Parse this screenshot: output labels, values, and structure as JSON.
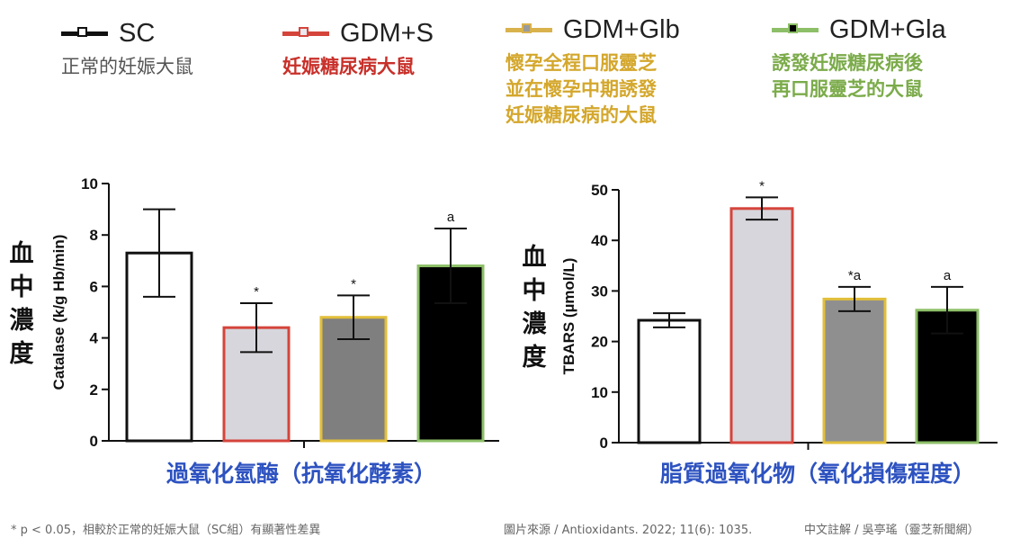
{
  "legend": [
    {
      "name": "SC",
      "desc": "正常的妊娠大鼠",
      "desc_color": "#555555",
      "line": "#111111",
      "fill": "#ffffff",
      "box_border": "#111111"
    },
    {
      "name": "GDM+S",
      "desc": "妊娠糖尿病大鼠",
      "desc_color": "#c8302a",
      "line": "#d5443b",
      "fill": "#e9e9ee",
      "box_border": "#d5443b"
    },
    {
      "name": "GDM+Glb",
      "desc": "懷孕全程口服靈芝\n並在懷孕中期誘發\n妊娠糖尿病的大鼠",
      "desc_color": "#d4a72c",
      "line": "#d9b24c",
      "fill": "#9a9a9a",
      "box_border": "#d9b24c"
    },
    {
      "name": "GDM+Gla",
      "desc": "誘發妊娠糖尿病後\n再口服靈芝的大鼠",
      "desc_color": "#7bab4a",
      "line": "#8dbf68",
      "fill": "#000000",
      "box_border": "#8dbf68"
    }
  ],
  "chart_data": [
    {
      "type": "bar",
      "categories": [
        "SC",
        "GDM+S",
        "GDM+Glb",
        "GDM+Gla"
      ],
      "values": [
        7.3,
        4.4,
        4.8,
        6.8
      ],
      "errors": [
        1.7,
        0.95,
        0.85,
        1.45
      ],
      "annotations": [
        "",
        "*",
        "*",
        "a"
      ],
      "bar_fills": [
        "#ffffff",
        "#d6d6dc",
        "#7f7f7f",
        "#000000"
      ],
      "bar_borders": [
        "#111111",
        "#d5443b",
        "#e2bf3a",
        "#8dbf68"
      ],
      "ylabel": "Catalase (k/g Hb/min)",
      "ylabel_cn": "血中濃度",
      "ylim": [
        0,
        10
      ],
      "yticks": [
        0,
        2,
        4,
        6,
        8,
        10
      ],
      "title": "過氧化氫酶（抗氧化酵素）",
      "title_color": "#2d52c0"
    },
    {
      "type": "bar",
      "categories": [
        "SC",
        "GDM+S",
        "GDM+Glb",
        "GDM+Gla"
      ],
      "values": [
        24.2,
        46.3,
        28.4,
        26.2
      ],
      "errors": [
        1.4,
        2.2,
        2.4,
        4.6
      ],
      "annotations": [
        "",
        "*",
        "*a",
        "a"
      ],
      "bar_fills": [
        "#ffffff",
        "#d6d6dc",
        "#8f8f8f",
        "#000000"
      ],
      "bar_borders": [
        "#111111",
        "#d5443b",
        "#e2bf3a",
        "#8dbf68"
      ],
      "ylabel": "TBARS (µmol/L)",
      "ylabel_cn": "血中濃度",
      "ylim": [
        0,
        50
      ],
      "yticks": [
        0,
        10,
        20,
        30,
        40,
        50
      ],
      "title": "脂質過氧化物（氧化損傷程度）",
      "title_color": "#2d52c0"
    }
  ],
  "footnote_left": "* p < 0.05，相較於正常的妊娠大鼠（SC組）有顯著性差異",
  "footnote_source": "圖片來源 / Antioxidants. 2022; 11(6): 1035.",
  "footnote_credit": "中文註解 / 吳亭瑤（靈芝新聞網）"
}
